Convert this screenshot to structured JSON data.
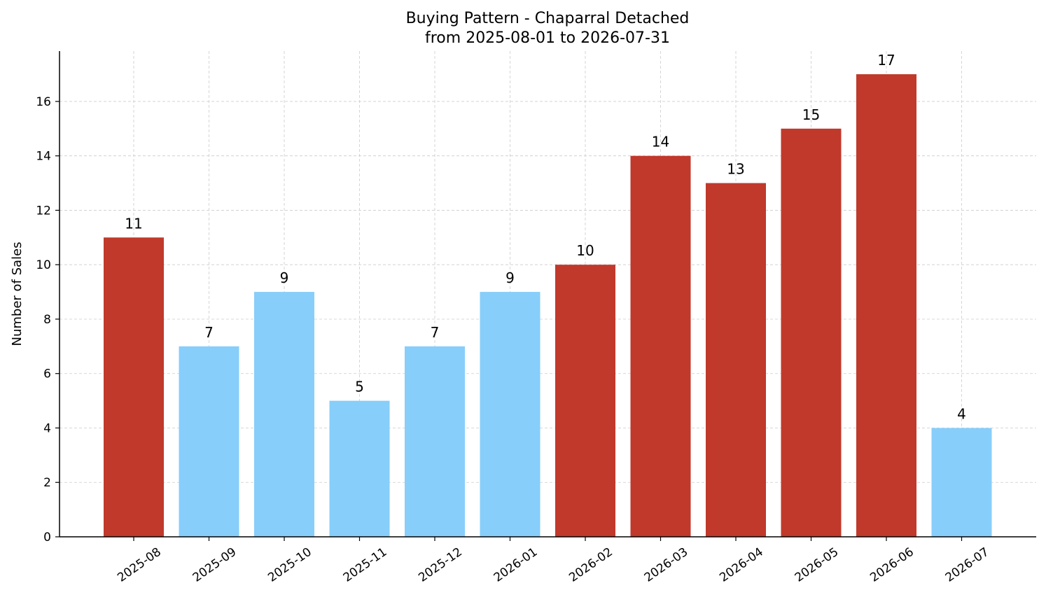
{
  "chart_data": {
    "type": "bar",
    "title_line1": "Buying Pattern - Chaparral Detached",
    "title_line2": "from 2025-08-01 to 2026-07-31",
    "xlabel": "",
    "ylabel": "Number of Sales",
    "categories": [
      "2025-08",
      "2025-09",
      "2025-10",
      "2025-11",
      "2025-12",
      "2026-01",
      "2026-02",
      "2026-03",
      "2026-04",
      "2026-05",
      "2026-06",
      "2026-07"
    ],
    "values": [
      11,
      7,
      9,
      5,
      7,
      9,
      10,
      14,
      13,
      15,
      17,
      4
    ],
    "bar_colors": [
      "#c0392b",
      "#87cefa",
      "#87cefa",
      "#87cefa",
      "#87cefa",
      "#87cefa",
      "#c0392b",
      "#c0392b",
      "#c0392b",
      "#c0392b",
      "#c0392b",
      "#87cefa"
    ],
    "ylim": [
      0,
      17.85
    ],
    "yticks": [
      0,
      2,
      4,
      6,
      8,
      10,
      12,
      14,
      16
    ],
    "grid": true,
    "grid_style": "dashed",
    "legend": "none"
  }
}
